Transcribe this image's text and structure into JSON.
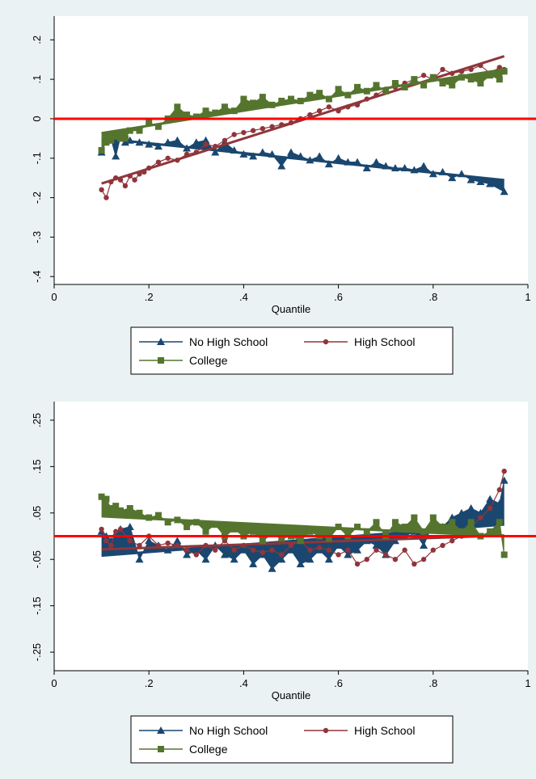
{
  "colors": {
    "panel_background": "#eaf2f3",
    "plot_background": "#ffffff",
    "zero_line": "#ff0000",
    "no_high_school": "#1a476f",
    "high_school": "#90353b",
    "college": "#55752f"
  },
  "legend": {
    "entries": [
      {
        "label": "No High School",
        "marker": "triangle",
        "series": "no_high_school"
      },
      {
        "label": "High School",
        "marker": "circle",
        "series": "high_school"
      },
      {
        "label": "College",
        "marker": "square",
        "series": "college"
      }
    ]
  },
  "chart_data": [
    {
      "type": "line",
      "xlabel": "Quantile",
      "ylabel": "",
      "xlim": [
        0,
        1
      ],
      "ylim": [
        -0.42,
        0.26
      ],
      "xticks": [
        0,
        0.2,
        0.4,
        0.6,
        0.8,
        1
      ],
      "xtick_labels": [
        "0",
        ".2",
        ".4",
        ".6",
        ".8",
        "1"
      ],
      "yticks": [
        -0.4,
        -0.3,
        -0.2,
        -0.1,
        0,
        0.1,
        0.2
      ],
      "ytick_labels": [
        "-.4",
        "-.3",
        "-.2",
        "-.1",
        "0",
        ".1",
        ".2"
      ],
      "reference_line_y": 0,
      "grid": false,
      "legend_placement": "bottom",
      "series": [
        {
          "name": "No High School",
          "key": "no_high_school",
          "marker": "triangle",
          "x": [
            0.1,
            0.11,
            0.12,
            0.13,
            0.14,
            0.15,
            0.16,
            0.18,
            0.2,
            0.22,
            0.24,
            0.26,
            0.28,
            0.3,
            0.32,
            0.34,
            0.36,
            0.38,
            0.4,
            0.42,
            0.44,
            0.46,
            0.48,
            0.5,
            0.52,
            0.54,
            0.56,
            0.58,
            0.6,
            0.62,
            0.64,
            0.66,
            0.68,
            0.7,
            0.72,
            0.74,
            0.76,
            0.78,
            0.8,
            0.82,
            0.84,
            0.86,
            0.88,
            0.9,
            0.92,
            0.95
          ],
          "y": [
            -0.085,
            -0.055,
            -0.05,
            -0.095,
            -0.045,
            -0.06,
            -0.055,
            -0.06,
            -0.065,
            -0.07,
            -0.06,
            -0.055,
            -0.075,
            -0.06,
            -0.055,
            -0.085,
            -0.06,
            -0.08,
            -0.09,
            -0.095,
            -0.085,
            -0.09,
            -0.12,
            -0.085,
            -0.095,
            -0.105,
            -0.095,
            -0.115,
            -0.1,
            -0.11,
            -0.11,
            -0.125,
            -0.11,
            -0.12,
            -0.125,
            -0.125,
            -0.13,
            -0.12,
            -0.14,
            -0.135,
            -0.15,
            -0.14,
            -0.155,
            -0.16,
            -0.165,
            -0.185
          ]
        },
        {
          "name": "High School",
          "key": "high_school",
          "marker": "circle",
          "x": [
            0.1,
            0.11,
            0.12,
            0.13,
            0.14,
            0.15,
            0.16,
            0.17,
            0.18,
            0.19,
            0.2,
            0.22,
            0.24,
            0.26,
            0.28,
            0.3,
            0.32,
            0.34,
            0.36,
            0.38,
            0.4,
            0.42,
            0.44,
            0.46,
            0.48,
            0.5,
            0.52,
            0.54,
            0.56,
            0.58,
            0.6,
            0.62,
            0.64,
            0.66,
            0.68,
            0.7,
            0.72,
            0.74,
            0.76,
            0.78,
            0.8,
            0.82,
            0.84,
            0.86,
            0.88,
            0.9,
            0.92,
            0.94,
            0.95
          ],
          "y": [
            -0.18,
            -0.2,
            -0.16,
            -0.15,
            -0.155,
            -0.17,
            -0.145,
            -0.155,
            -0.14,
            -0.135,
            -0.125,
            -0.11,
            -0.1,
            -0.105,
            -0.09,
            -0.085,
            -0.065,
            -0.07,
            -0.055,
            -0.04,
            -0.035,
            -0.03,
            -0.025,
            -0.02,
            -0.015,
            -0.01,
            0.0,
            0.01,
            0.02,
            0.03,
            0.02,
            0.03,
            0.035,
            0.05,
            0.06,
            0.075,
            0.08,
            0.09,
            0.1,
            0.11,
            0.1,
            0.125,
            0.115,
            0.12,
            0.125,
            0.135,
            0.115,
            0.13,
            0.125
          ]
        },
        {
          "name": "College",
          "key": "college",
          "marker": "square",
          "x": [
            0.1,
            0.11,
            0.12,
            0.13,
            0.14,
            0.15,
            0.16,
            0.18,
            0.2,
            0.22,
            0.24,
            0.26,
            0.28,
            0.3,
            0.32,
            0.34,
            0.36,
            0.38,
            0.4,
            0.42,
            0.44,
            0.46,
            0.48,
            0.5,
            0.52,
            0.54,
            0.56,
            0.58,
            0.6,
            0.62,
            0.64,
            0.66,
            0.68,
            0.7,
            0.72,
            0.74,
            0.76,
            0.78,
            0.8,
            0.82,
            0.84,
            0.86,
            0.88,
            0.9,
            0.92,
            0.94,
            0.95
          ],
          "y": [
            -0.08,
            -0.06,
            -0.055,
            -0.045,
            -0.05,
            -0.05,
            -0.03,
            -0.03,
            -0.01,
            -0.02,
            0.0,
            0.03,
            0.01,
            0.005,
            0.02,
            0.015,
            0.03,
            0.02,
            0.05,
            0.04,
            0.055,
            0.035,
            0.045,
            0.05,
            0.045,
            0.06,
            0.065,
            0.05,
            0.075,
            0.06,
            0.08,
            0.07,
            0.085,
            0.07,
            0.09,
            0.08,
            0.1,
            0.085,
            0.105,
            0.09,
            0.085,
            0.105,
            0.1,
            0.09,
            0.11,
            0.1,
            0.12
          ]
        }
      ]
    },
    {
      "type": "line",
      "xlabel": "Quantile",
      "ylabel": "",
      "xlim": [
        0,
        1
      ],
      "ylim": [
        -0.29,
        0.29
      ],
      "xticks": [
        0,
        0.2,
        0.4,
        0.6,
        0.8,
        1
      ],
      "xtick_labels": [
        "0",
        ".2",
        ".4",
        ".6",
        ".8",
        "1"
      ],
      "yticks": [
        -0.25,
        -0.15,
        -0.05,
        0.05,
        0.15,
        0.25
      ],
      "ytick_labels": [
        "-.25",
        "-.15",
        "-.05",
        ".05",
        ".15",
        ".25"
      ],
      "reference_line_y": 0,
      "grid": false,
      "legend_placement": "bottom",
      "series": [
        {
          "name": "No High School",
          "key": "no_high_school",
          "marker": "triangle",
          "x": [
            0.1,
            0.11,
            0.12,
            0.13,
            0.14,
            0.16,
            0.18,
            0.2,
            0.22,
            0.24,
            0.26,
            0.28,
            0.3,
            0.32,
            0.34,
            0.36,
            0.38,
            0.4,
            0.42,
            0.44,
            0.46,
            0.48,
            0.5,
            0.52,
            0.54,
            0.56,
            0.58,
            0.6,
            0.62,
            0.64,
            0.66,
            0.68,
            0.7,
            0.72,
            0.74,
            0.76,
            0.78,
            0.8,
            0.82,
            0.84,
            0.86,
            0.88,
            0.9,
            0.92,
            0.94,
            0.95
          ],
          "y": [
            0.01,
            0.0,
            -0.01,
            0.005,
            0.015,
            0.02,
            -0.05,
            -0.01,
            -0.02,
            -0.03,
            -0.01,
            -0.04,
            -0.03,
            -0.05,
            -0.02,
            -0.04,
            -0.05,
            -0.03,
            -0.06,
            -0.04,
            -0.07,
            -0.05,
            -0.03,
            -0.06,
            -0.05,
            -0.03,
            -0.05,
            -0.02,
            -0.04,
            -0.03,
            -0.01,
            -0.02,
            -0.04,
            -0.01,
            0.0,
            0.01,
            -0.02,
            0.03,
            0.02,
            0.04,
            0.05,
            0.06,
            0.05,
            0.08,
            0.07,
            0.12
          ]
        },
        {
          "name": "High School",
          "key": "high_school",
          "marker": "circle",
          "x": [
            0.1,
            0.11,
            0.12,
            0.13,
            0.14,
            0.16,
            0.18,
            0.2,
            0.22,
            0.24,
            0.26,
            0.28,
            0.3,
            0.32,
            0.34,
            0.36,
            0.38,
            0.4,
            0.42,
            0.44,
            0.46,
            0.48,
            0.5,
            0.52,
            0.54,
            0.56,
            0.58,
            0.6,
            0.62,
            0.64,
            0.66,
            0.68,
            0.7,
            0.72,
            0.74,
            0.76,
            0.78,
            0.8,
            0.82,
            0.84,
            0.86,
            0.88,
            0.9,
            0.92,
            0.94,
            0.95
          ],
          "y": [
            0.015,
            -0.01,
            -0.02,
            0.01,
            0.015,
            -0.01,
            -0.02,
            0.0,
            -0.02,
            -0.015,
            -0.02,
            -0.03,
            -0.04,
            -0.02,
            -0.03,
            -0.01,
            -0.03,
            -0.02,
            -0.03,
            -0.035,
            -0.03,
            -0.04,
            -0.02,
            -0.01,
            -0.03,
            -0.025,
            -0.03,
            -0.04,
            -0.03,
            -0.06,
            -0.05,
            -0.03,
            -0.04,
            -0.05,
            -0.03,
            -0.06,
            -0.05,
            -0.03,
            -0.02,
            -0.01,
            0.0,
            0.02,
            0.04,
            0.06,
            0.1,
            0.14
          ]
        },
        {
          "name": "College",
          "key": "college",
          "marker": "square",
          "x": [
            0.1,
            0.11,
            0.12,
            0.13,
            0.14,
            0.16,
            0.18,
            0.2,
            0.22,
            0.24,
            0.26,
            0.28,
            0.3,
            0.32,
            0.34,
            0.36,
            0.38,
            0.4,
            0.42,
            0.44,
            0.46,
            0.48,
            0.5,
            0.52,
            0.54,
            0.56,
            0.58,
            0.6,
            0.62,
            0.64,
            0.66,
            0.68,
            0.7,
            0.72,
            0.74,
            0.76,
            0.78,
            0.8,
            0.82,
            0.84,
            0.86,
            0.88,
            0.9,
            0.92,
            0.94,
            0.95
          ],
          "y": [
            0.085,
            0.08,
            0.06,
            0.065,
            0.055,
            0.06,
            0.05,
            0.04,
            0.045,
            0.03,
            0.035,
            0.02,
            0.03,
            0.01,
            0.025,
            0.0,
            0.015,
            0.0,
            0.01,
            -0.01,
            0.005,
            -0.005,
            0.0,
            -0.01,
            0.01,
            0.0,
            -0.005,
            0.02,
            0.0,
            0.02,
            0.01,
            0.03,
            0.0,
            0.03,
            0.02,
            0.04,
            0.01,
            0.04,
            0.02,
            0.03,
            0.01,
            0.03,
            0.0,
            0.01,
            0.03,
            -0.04
          ]
        }
      ]
    }
  ]
}
